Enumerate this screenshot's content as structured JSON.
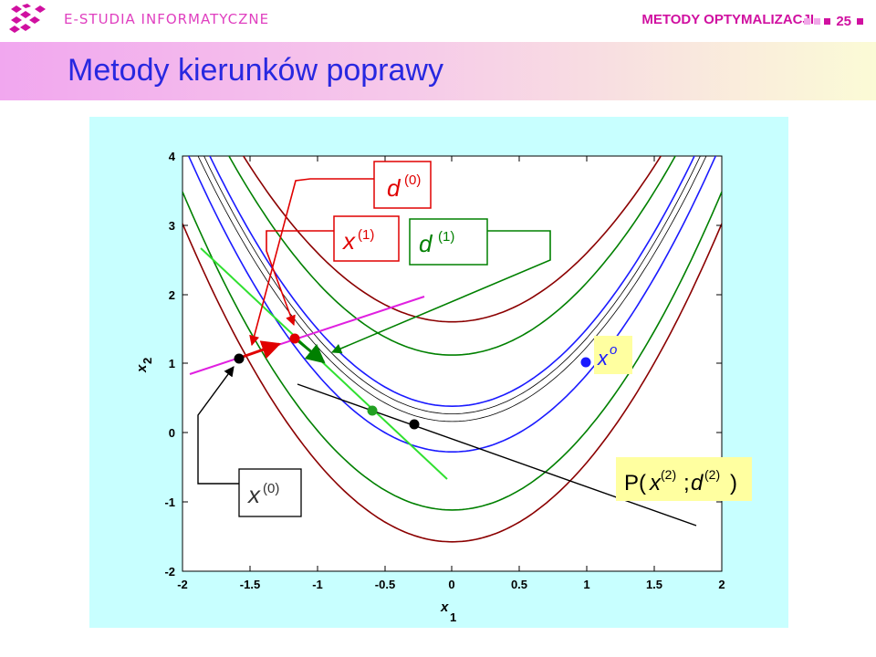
{
  "header": {
    "brand": "E-STUDIA INFORMATYCZNE",
    "course": "METODY OPTYMALIZACJI",
    "page": "25"
  },
  "title": "Metody kierunków poprawy",
  "colors": {
    "brand": "#e040c0",
    "title": "#2828e0",
    "band_left": "#f1a7ef",
    "band_right": "#fbfbd6",
    "panel": "#c8ffff",
    "pager_light": "#f0a8e8",
    "pager_dark": "#d010a0"
  },
  "axes": {
    "xlabel": "x",
    "xlabel_sub": "1",
    "ylabel": "x",
    "ylabel_sub": "2",
    "xlim": [
      -2,
      2
    ],
    "ylim": [
      -2,
      4
    ],
    "xticks": [
      "-2",
      "-1.5",
      "-1",
      "-0.5",
      "0",
      "0.5",
      "1",
      "1.5",
      "2"
    ],
    "yticks": [
      "-2",
      "-1",
      "0",
      "1",
      "2",
      "3",
      "4"
    ]
  },
  "labels": {
    "d0": "d",
    "d0_sup": "(0)",
    "x1": "x",
    "x1_sup": "(1)",
    "d1": "d",
    "d1_sup": "(1)",
    "x0": "x",
    "x0_sup": "(0)",
    "xo": "x",
    "xo_sup": "o",
    "p_pre": "P(",
    "p_x": "x",
    "p_x_sup": "(2)",
    "p_sep": ";",
    "p_d": "d",
    "p_d_sup": "(2)",
    "p_post": ")"
  }
}
